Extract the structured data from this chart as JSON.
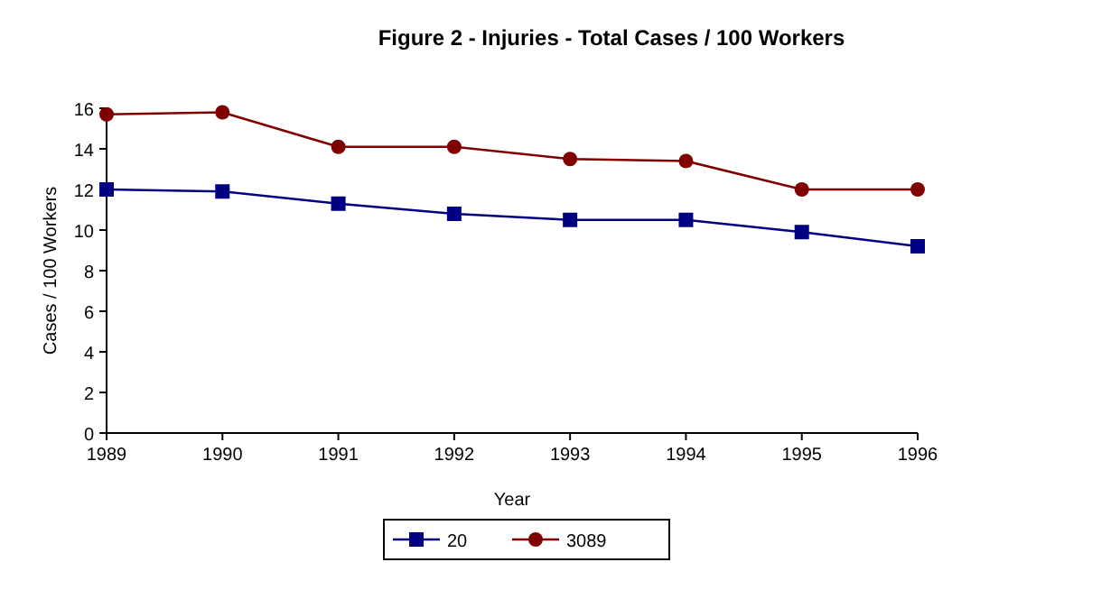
{
  "chart_data": {
    "type": "line",
    "title": "Figure 2 - Injuries - Total Cases / 100 Workers",
    "xlabel": "Year",
    "ylabel": "Cases / 100 Workers",
    "x": [
      1989,
      1990,
      1991,
      1992,
      1993,
      1994,
      1995,
      1996
    ],
    "xlim": [
      1989,
      1996
    ],
    "xticks": [
      1989,
      1990,
      1991,
      1992,
      1993,
      1994,
      1995,
      1996
    ],
    "ylim": [
      0,
      16
    ],
    "yticks": [
      0,
      2,
      4,
      6,
      8,
      10,
      12,
      14,
      16
    ],
    "series": [
      {
        "name": "20",
        "color": "#000080",
        "marker": "square",
        "values": [
          12.0,
          11.9,
          11.3,
          10.8,
          10.5,
          10.5,
          9.9,
          9.2
        ]
      },
      {
        "name": "3089",
        "color": "#800000",
        "marker": "circle",
        "values": [
          15.7,
          15.8,
          14.1,
          14.1,
          13.5,
          13.4,
          12.0,
          12.0
        ]
      }
    ],
    "legend": "bottom",
    "grid": false,
    "line_style": "solid"
  }
}
